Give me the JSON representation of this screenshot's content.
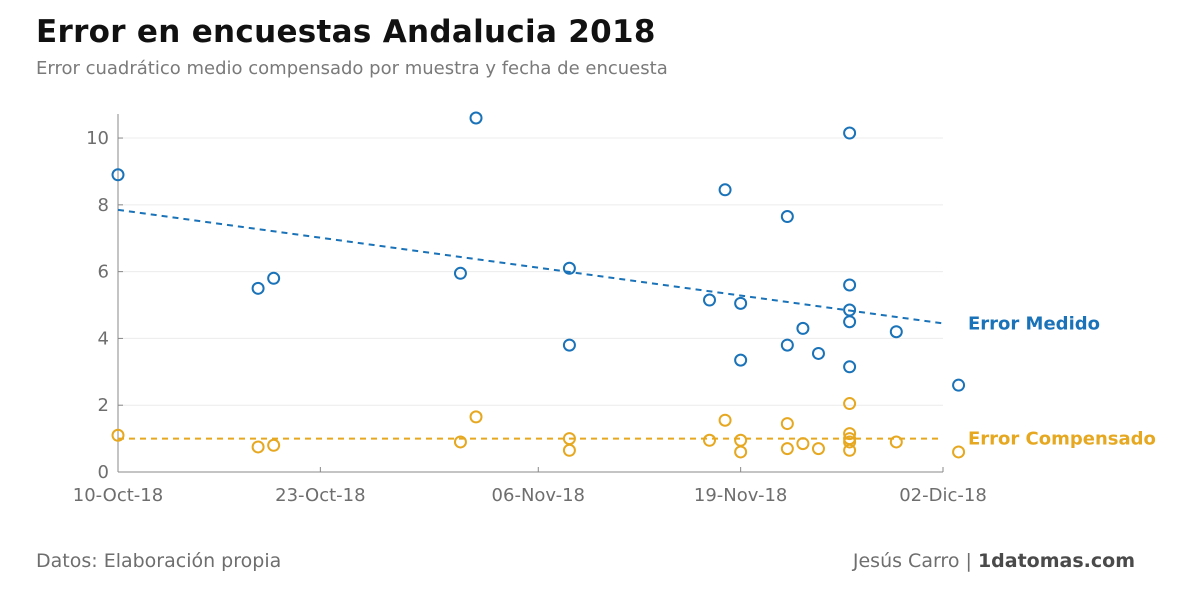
{
  "header": {
    "title": "Error en encuestas Andalucia 2018",
    "subtitle": "Error cuadrático medio compensado por muestra y fecha de encuesta"
  },
  "footer": {
    "source": "Datos: Elaboración propia",
    "author": "Jesús Carro",
    "separator": "|",
    "site": "1datomas.com"
  },
  "chart_data": {
    "type": "scatter",
    "title": "Error en encuestas Andalucia 2018",
    "subtitle": "Error cuadrático medio compensado por muestra y fecha de encuesta",
    "xlabel": "",
    "ylabel": "",
    "x_type": "date",
    "xlim": [
      "2018-10-10",
      "2018-12-02"
    ],
    "ylim": [
      0,
      10.6
    ],
    "x_ticks": [
      "2018-10-10",
      "2018-10-23",
      "2018-11-06",
      "2018-11-19",
      "2018-12-02"
    ],
    "x_tick_labels": [
      "10-Oct-18",
      "23-Oct-18",
      "06-Nov-18",
      "19-Nov-18",
      "02-Dic-18"
    ],
    "y_ticks": [
      0,
      2,
      4,
      6,
      8,
      10
    ],
    "grid": "horizontal",
    "marker": "open-circle",
    "series": [
      {
        "name": "Error Medido",
        "color": "#1a73b8",
        "points": [
          {
            "x": "2018-10-10",
            "y": 8.9
          },
          {
            "x": "2018-10-19",
            "y": 5.5
          },
          {
            "x": "2018-10-20",
            "y": 5.8
          },
          {
            "x": "2018-11-01",
            "y": 5.95
          },
          {
            "x": "2018-11-02",
            "y": 10.6
          },
          {
            "x": "2018-11-08",
            "y": 6.1
          },
          {
            "x": "2018-11-08",
            "y": 3.8
          },
          {
            "x": "2018-11-17",
            "y": 5.15
          },
          {
            "x": "2018-11-18",
            "y": 8.45
          },
          {
            "x": "2018-11-19",
            "y": 5.05
          },
          {
            "x": "2018-11-19",
            "y": 3.35
          },
          {
            "x": "2018-11-22",
            "y": 7.65
          },
          {
            "x": "2018-11-22",
            "y": 3.8
          },
          {
            "x": "2018-11-23",
            "y": 4.3
          },
          {
            "x": "2018-11-24",
            "y": 3.55
          },
          {
            "x": "2018-11-26",
            "y": 10.15
          },
          {
            "x": "2018-11-26",
            "y": 5.6
          },
          {
            "x": "2018-11-26",
            "y": 4.85
          },
          {
            "x": "2018-11-26",
            "y": 4.5
          },
          {
            "x": "2018-11-26",
            "y": 3.15
          },
          {
            "x": "2018-11-29",
            "y": 4.2
          },
          {
            "x": "2018-12-03",
            "y": 2.6
          }
        ],
        "trend": {
          "style": "dashed",
          "from": {
            "x": "2018-10-10",
            "y": 7.85
          },
          "to": {
            "x": "2018-12-02",
            "y": 4.45
          }
        }
      },
      {
        "name": "Error Compensado",
        "color": "#e6a820",
        "points": [
          {
            "x": "2018-10-10",
            "y": 1.1
          },
          {
            "x": "2018-10-19",
            "y": 0.75
          },
          {
            "x": "2018-10-20",
            "y": 0.8
          },
          {
            "x": "2018-11-01",
            "y": 0.9
          },
          {
            "x": "2018-11-02",
            "y": 1.65
          },
          {
            "x": "2018-11-08",
            "y": 1.0
          },
          {
            "x": "2018-11-08",
            "y": 0.65
          },
          {
            "x": "2018-11-17",
            "y": 0.95
          },
          {
            "x": "2018-11-18",
            "y": 1.55
          },
          {
            "x": "2018-11-19",
            "y": 0.95
          },
          {
            "x": "2018-11-19",
            "y": 0.6
          },
          {
            "x": "2018-11-22",
            "y": 1.45
          },
          {
            "x": "2018-11-22",
            "y": 0.7
          },
          {
            "x": "2018-11-23",
            "y": 0.85
          },
          {
            "x": "2018-11-24",
            "y": 0.7
          },
          {
            "x": "2018-11-26",
            "y": 2.05
          },
          {
            "x": "2018-11-26",
            "y": 1.15
          },
          {
            "x": "2018-11-26",
            "y": 1.0
          },
          {
            "x": "2018-11-26",
            "y": 0.9
          },
          {
            "x": "2018-11-26",
            "y": 0.65
          },
          {
            "x": "2018-11-29",
            "y": 0.9
          },
          {
            "x": "2018-12-03",
            "y": 0.6
          }
        ],
        "trend": {
          "style": "dashed",
          "from": {
            "x": "2018-10-10",
            "y": 1.0
          },
          "to": {
            "x": "2018-12-02",
            "y": 1.0
          }
        }
      }
    ]
  }
}
